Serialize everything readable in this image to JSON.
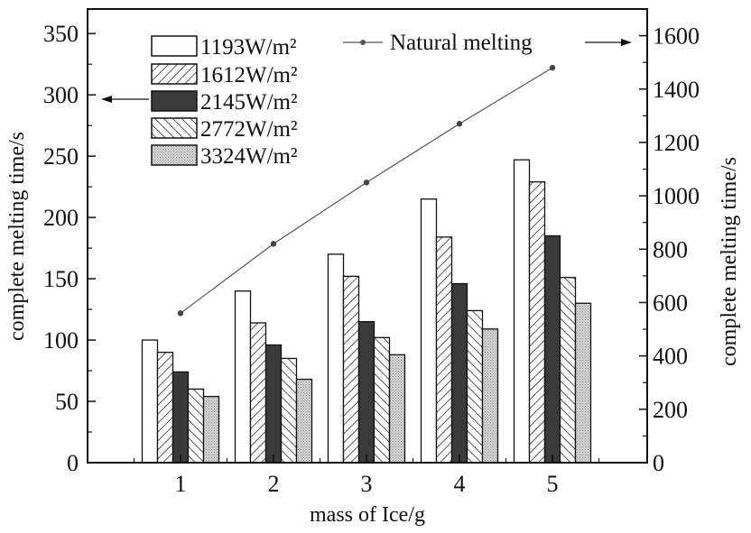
{
  "chart_data": {
    "type": "bar",
    "title": "",
    "xlabel": "mass of Ice/g",
    "ylabel": "complete melting time/s",
    "y2label": "complete melting time/s",
    "categories": [
      "1",
      "2",
      "3",
      "4",
      "5"
    ],
    "ylim": [
      0,
      370
    ],
    "yticks": [
      0,
      50,
      100,
      150,
      200,
      250,
      300,
      350
    ],
    "y2lim": [
      0,
      1700
    ],
    "y2ticks": [
      0,
      200,
      400,
      600,
      800,
      1000,
      1200,
      1400,
      1600
    ],
    "series": [
      {
        "name": "1193W/m²",
        "axis": "left",
        "fill": "white",
        "values": [
          100,
          140,
          170,
          215,
          247
        ]
      },
      {
        "name": "1612W/m²",
        "axis": "left",
        "fill": "hatch-forward",
        "values": [
          90,
          114,
          152,
          184,
          229
        ]
      },
      {
        "name": "2145W/m²",
        "axis": "left",
        "fill": "dark",
        "values": [
          74,
          96,
          115,
          146,
          185
        ]
      },
      {
        "name": "2772W/m²",
        "axis": "left",
        "fill": "hatch-back",
        "values": [
          60,
          85,
          102,
          124,
          151
        ]
      },
      {
        "name": "3324W/m²",
        "axis": "left",
        "fill": "dotted",
        "values": [
          54,
          68,
          88,
          109,
          130
        ]
      }
    ],
    "line_series": {
      "name": "Natural melting",
      "axis": "right",
      "type": "line",
      "values": [
        560,
        820,
        1050,
        1270,
        1480
      ]
    },
    "legend_position": "top-left",
    "grid": false,
    "colors": {
      "dark_bar": "#3a3a3a",
      "dotted_bar": "#cfcfcf",
      "line": "#555555",
      "axes": "#111111"
    }
  }
}
